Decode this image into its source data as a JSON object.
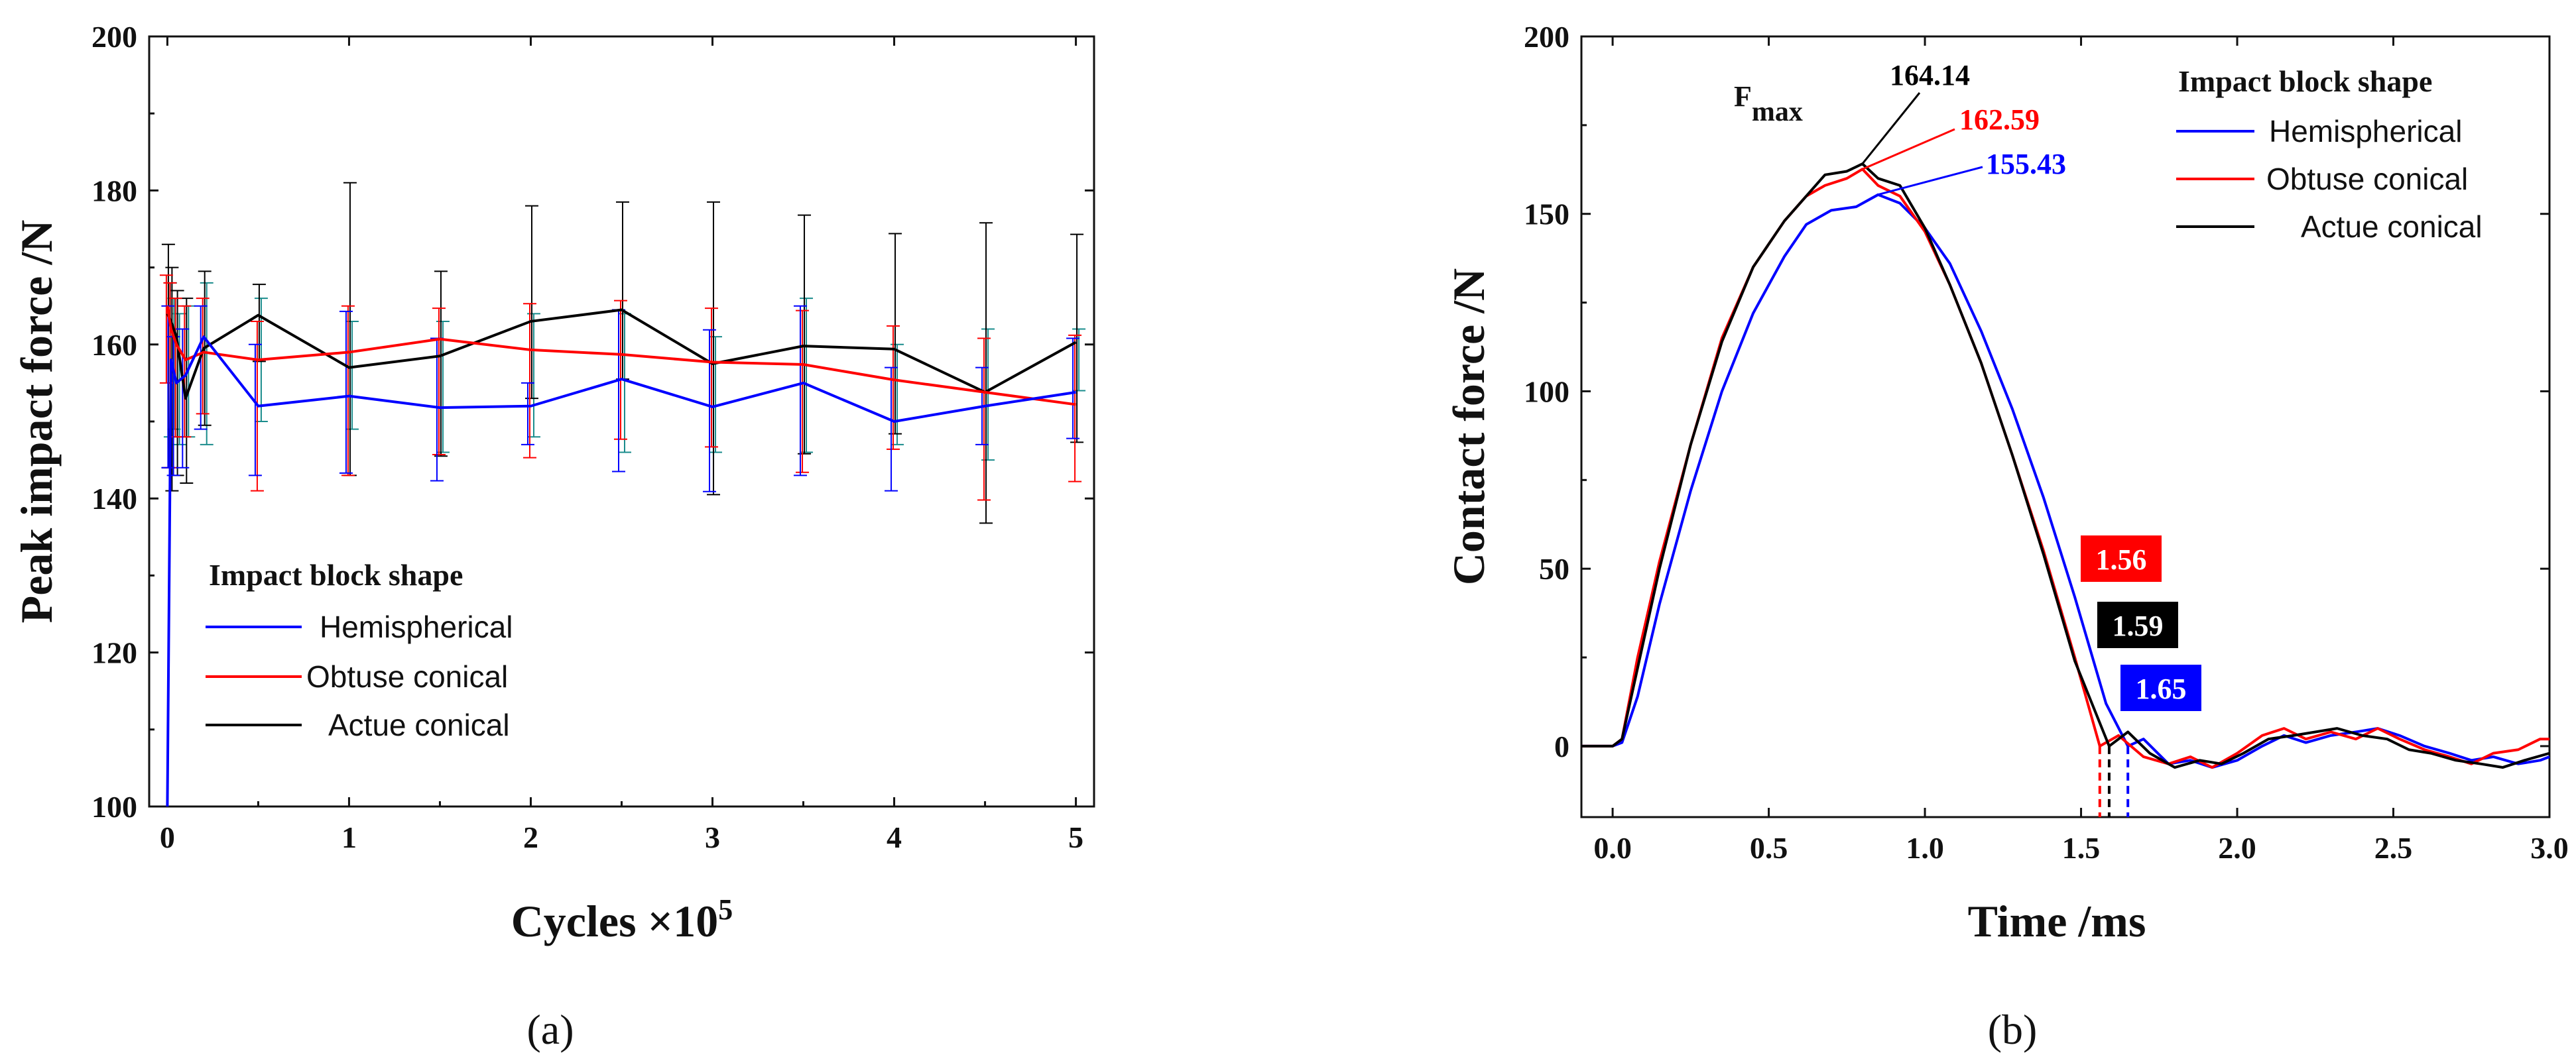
{
  "chart_data": [
    {
      "type": "line",
      "panel_label": "(a)",
      "xlabel": "Cycles ×10",
      "xlabel_sup": "5",
      "ylabel": "Peak impact force /N",
      "xlim": [
        -0.1,
        5.1
      ],
      "ylim": [
        100,
        200
      ],
      "xticks": [
        0,
        1,
        2,
        3,
        4,
        5
      ],
      "yticks": [
        100,
        120,
        140,
        160,
        180,
        200
      ],
      "legend": {
        "title": "Impact block shape",
        "position": "lower-left"
      },
      "x": [
        0,
        0.02,
        0.05,
        0.1,
        0.2,
        0.5,
        1,
        1.5,
        2,
        2.5,
        3,
        3.5,
        4,
        4.5,
        5
      ],
      "series": [
        {
          "name": "Hemispherical",
          "color": "#0000ff",
          "values": [
            100,
            158,
            155,
            156,
            161,
            152,
            153.3,
            151.8,
            152,
            155.5,
            151.9,
            155,
            150,
            152,
            153.8
          ],
          "err_low": [
            0,
            14,
            12,
            12,
            12,
            9,
            10,
            9.5,
            5,
            12,
            11,
            12,
            9,
            5,
            6
          ],
          "err_high": [
            0,
            7,
            6,
            6,
            4,
            8,
            11,
            9,
            3,
            9,
            10,
            10,
            7,
            5,
            7
          ]
        },
        {
          "name": "Obtuse conical",
          "color": "#ff0000",
          "values": [
            165,
            162,
            160,
            158,
            159,
            158,
            159,
            160.7,
            159.3,
            158.7,
            157.7,
            157.4,
            155.4,
            153.8,
            152.2
          ],
          "err_low": [
            10,
            18,
            12,
            10,
            8,
            17,
            16,
            15,
            14,
            11,
            11,
            14,
            9,
            14,
            10
          ],
          "err_high": [
            4,
            6,
            6,
            7,
            7,
            5,
            6,
            4,
            6,
            7,
            7,
            7,
            7,
            7,
            9
          ]
        },
        {
          "name": "Actue conical",
          "color": "#000000",
          "values": [
            164,
            163,
            161,
            153,
            159.5,
            163.8,
            157,
            158.5,
            163,
            164.5,
            157.5,
            159.8,
            159.4,
            153.8,
            160.3
          ],
          "err_low": [
            20,
            22,
            18,
            11,
            10,
            6,
            14,
            13,
            10,
            9,
            17,
            14,
            11,
            17,
            13
          ],
          "err_high": [
            9,
            7,
            6,
            13,
            10,
            4,
            24,
            11,
            15,
            14,
            21,
            17,
            15,
            22,
            14
          ]
        },
        {
          "name": "",
          "color": "#1a8c8c",
          "values": [
            161,
            160,
            158,
            158,
            160,
            160,
            159,
            157,
            158,
            158,
            156,
            160,
            155,
            156,
            160
          ],
          "err_low": [
            13,
            11,
            11,
            10,
            13,
            10,
            10,
            11,
            10,
            12,
            10,
            14,
            8,
            11,
            6
          ],
          "err_high": [
            7,
            6,
            6,
            7,
            8,
            6,
            4,
            6,
            6,
            6,
            5,
            6,
            5,
            6,
            2
          ]
        }
      ]
    },
    {
      "type": "line",
      "panel_label": "(b)",
      "xlabel": "Time /ms",
      "ylabel": "Contact force /N",
      "xlim": [
        -0.1,
        3.0
      ],
      "ylim": [
        -20,
        200
      ],
      "xticks": [
        0.0,
        0.5,
        1.0,
        1.5,
        2.0,
        2.5,
        3.0
      ],
      "xtick_labels": [
        "0.0",
        "0.5",
        "1.0",
        "1.5",
        "2.0",
        "2.5",
        "3.0"
      ],
      "yticks": [
        0,
        50,
        100,
        150,
        200
      ],
      "legend": {
        "title": "Impact block shape",
        "position": "top-right"
      },
      "series": [
        {
          "name": "Hemispherical",
          "color": "#0000ff",
          "time": [
            -0.1,
            0.0,
            0.03,
            0.08,
            0.15,
            0.25,
            0.35,
            0.45,
            0.55,
            0.62,
            0.7,
            0.78,
            0.85,
            0.92,
            1.0,
            1.08,
            1.18,
            1.28,
            1.38,
            1.48,
            1.58,
            1.65,
            1.7,
            1.78,
            1.85,
            1.92,
            2.0,
            2.08,
            2.15,
            2.22,
            2.3,
            2.38,
            2.45,
            2.52,
            2.6,
            2.68,
            2.75,
            2.82,
            2.9,
            2.97,
            3.0
          ],
          "force": [
            0,
            0,
            1,
            14,
            40,
            72,
            100,
            122,
            138,
            147,
            151,
            152,
            155.4,
            153,
            146,
            136,
            117,
            95,
            70,
            42,
            12,
            0,
            2,
            -5,
            -4,
            -6,
            -4,
            0,
            3,
            1,
            3,
            4,
            5,
            3,
            0,
            -2,
            -4,
            -3,
            -5,
            -4,
            -3
          ]
        },
        {
          "name": "Obtuse conical",
          "color": "#ff0000",
          "time": [
            -0.1,
            0.0,
            0.03,
            0.08,
            0.15,
            0.25,
            0.35,
            0.45,
            0.55,
            0.62,
            0.68,
            0.75,
            0.8,
            0.85,
            0.92,
            1.0,
            1.08,
            1.18,
            1.28,
            1.38,
            1.48,
            1.56,
            1.62,
            1.7,
            1.78,
            1.85,
            1.92,
            2.0,
            2.08,
            2.15,
            2.22,
            2.3,
            2.38,
            2.45,
            2.52,
            2.6,
            2.68,
            2.75,
            2.82,
            2.9,
            2.97,
            3.0
          ],
          "force": [
            0,
            0,
            2,
            25,
            52,
            85,
            115,
            135,
            148,
            155,
            158,
            160,
            162.6,
            158,
            155,
            145,
            130,
            108,
            82,
            55,
            25,
            0,
            3,
            -3,
            -5,
            -3,
            -6,
            -2,
            3,
            5,
            2,
            4,
            2,
            5,
            2,
            -1,
            -3,
            -5,
            -2,
            -1,
            2,
            2
          ]
        },
        {
          "name": "Actue conical",
          "color": "#000000",
          "time": [
            -0.1,
            0.0,
            0.03,
            0.08,
            0.15,
            0.25,
            0.35,
            0.45,
            0.55,
            0.62,
            0.68,
            0.75,
            0.8,
            0.85,
            0.92,
            1.0,
            1.08,
            1.18,
            1.28,
            1.38,
            1.48,
            1.59,
            1.65,
            1.72,
            1.8,
            1.88,
            1.95,
            2.02,
            2.1,
            2.18,
            2.25,
            2.32,
            2.4,
            2.48,
            2.55,
            2.62,
            2.7,
            2.78,
            2.85,
            2.92,
            3.0
          ],
          "force": [
            0,
            0,
            2,
            22,
            50,
            85,
            114,
            135,
            148,
            155,
            161,
            162,
            164.1,
            160,
            158,
            146,
            130,
            108,
            82,
            54,
            24,
            0,
            4,
            -2,
            -6,
            -4,
            -5,
            -2,
            2,
            3,
            4,
            5,
            3,
            2,
            -1,
            -2,
            -4,
            -5,
            -6,
            -4,
            -2
          ]
        }
      ],
      "annotations": {
        "fmax_label": "F",
        "fmax_sub": "max",
        "peaks": [
          {
            "label": "164.14",
            "color": "#000000",
            "x": 0.8,
            "y": 164.14
          },
          {
            "label": "162.59",
            "color": "#ff0000",
            "x": 0.8,
            "y": 162.59
          },
          {
            "label": "155.43",
            "color": "#0000ff",
            "x": 0.85,
            "y": 155.43
          }
        ],
        "end_times": [
          {
            "label": "1.56",
            "color": "#ff0000",
            "x": 1.56
          },
          {
            "label": "1.59",
            "color": "#000000",
            "x": 1.59
          },
          {
            "label": "1.65",
            "color": "#0000ff",
            "x": 1.65
          }
        ]
      }
    }
  ]
}
